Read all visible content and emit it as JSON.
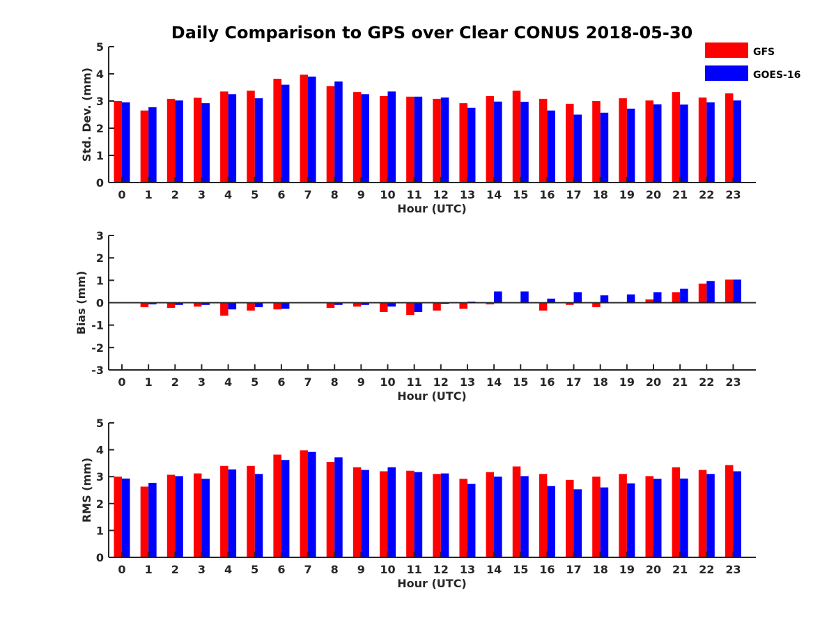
{
  "chart_data": {
    "title": "Daily Comparison to GPS over Clear CONUS 2018-05-30",
    "legend": {
      "placement": "top-right",
      "items": [
        {
          "name": "GFS",
          "color": "#ff0000"
        },
        {
          "name": "GOES-16",
          "color": "#0000ff"
        }
      ]
    },
    "panels": [
      {
        "id": "std",
        "type": "bar",
        "ylabel": "Std. Dev. (mm)",
        "xlabel": "Hour (UTC)",
        "ylim": [
          0,
          5
        ],
        "yticks": [
          0,
          1,
          2,
          3,
          4,
          5
        ],
        "categories": [
          "0",
          "1",
          "2",
          "3",
          "4",
          "5",
          "6",
          "7",
          "8",
          "9",
          "10",
          "11",
          "12",
          "13",
          "14",
          "15",
          "16",
          "17",
          "18",
          "19",
          "20",
          "21",
          "22",
          "23"
        ],
        "series": [
          {
            "name": "GFS",
            "color": "#ff0000",
            "values": [
              3.0,
              2.65,
              3.08,
              3.12,
              3.35,
              3.38,
              3.82,
              3.97,
              3.55,
              3.33,
              3.18,
              3.16,
              3.08,
              2.92,
              3.18,
              3.38,
              3.08,
              2.9,
              3.0,
              3.1,
              3.02,
              3.33,
              3.13,
              3.28
            ]
          },
          {
            "name": "GOES-16",
            "color": "#0000ff",
            "values": [
              2.95,
              2.77,
              3.02,
              2.92,
              3.25,
              3.1,
              3.6,
              3.9,
              3.72,
              3.25,
              3.35,
              3.16,
              3.13,
              2.75,
              2.98,
              2.97,
              2.65,
              2.5,
              2.57,
              2.72,
              2.88,
              2.87,
              2.95,
              3.02
            ]
          }
        ]
      },
      {
        "id": "bias",
        "type": "bar",
        "ylabel": "Bias (mm)",
        "xlabel": "Hour (UTC)",
        "ylim": [
          -3,
          3
        ],
        "yticks": [
          -3,
          -2,
          -1,
          0,
          1,
          2,
          3
        ],
        "zero_line": true,
        "categories": [
          "0",
          "1",
          "2",
          "3",
          "4",
          "5",
          "6",
          "7",
          "8",
          "9",
          "10",
          "11",
          "12",
          "13",
          "14",
          "15",
          "16",
          "17",
          "18",
          "19",
          "20",
          "21",
          "22",
          "23"
        ],
        "series": [
          {
            "name": "GFS",
            "color": "#ff0000",
            "values": [
              0.0,
              -0.2,
              -0.23,
              -0.17,
              -0.58,
              -0.35,
              -0.3,
              0.0,
              -0.23,
              -0.17,
              -0.42,
              -0.55,
              -0.35,
              -0.27,
              -0.07,
              -0.03,
              -0.35,
              -0.1,
              -0.2,
              0.0,
              0.15,
              0.47,
              0.85,
              1.03
            ]
          },
          {
            "name": "GOES-16",
            "color": "#0000ff",
            "values": [
              0.0,
              -0.07,
              -0.1,
              -0.1,
              -0.3,
              -0.2,
              -0.27,
              0.02,
              -0.1,
              -0.1,
              -0.17,
              -0.42,
              -0.05,
              0.05,
              0.5,
              0.5,
              0.18,
              0.47,
              0.33,
              0.37,
              0.47,
              0.62,
              0.97,
              1.03
            ]
          }
        ]
      },
      {
        "id": "rms",
        "type": "bar",
        "ylabel": "RMS (mm)",
        "xlabel": "Hour (UTC)",
        "ylim": [
          0,
          5
        ],
        "yticks": [
          0,
          1,
          2,
          3,
          4,
          5
        ],
        "categories": [
          "0",
          "1",
          "2",
          "3",
          "4",
          "5",
          "6",
          "7",
          "8",
          "9",
          "10",
          "11",
          "12",
          "13",
          "14",
          "15",
          "16",
          "17",
          "18",
          "19",
          "20",
          "21",
          "22",
          "23"
        ],
        "series": [
          {
            "name": "GFS",
            "color": "#ff0000",
            "values": [
              3.0,
              2.63,
              3.07,
              3.12,
              3.4,
              3.4,
              3.82,
              3.98,
              3.55,
              3.35,
              3.2,
              3.22,
              3.1,
              2.92,
              3.17,
              3.38,
              3.1,
              2.88,
              3.0,
              3.1,
              3.02,
              3.35,
              3.25,
              3.43
            ]
          },
          {
            "name": "GOES-16",
            "color": "#0000ff",
            "values": [
              2.93,
              2.77,
              3.02,
              2.92,
              3.27,
              3.1,
              3.62,
              3.92,
              3.72,
              3.25,
              3.35,
              3.17,
              3.12,
              2.73,
              3.0,
              3.02,
              2.65,
              2.53,
              2.6,
              2.75,
              2.92,
              2.93,
              3.1,
              3.2
            ]
          }
        ]
      }
    ]
  }
}
